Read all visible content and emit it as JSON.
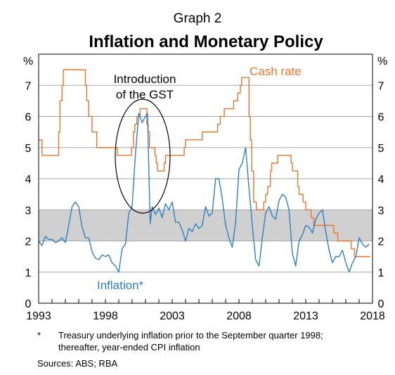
{
  "chart_data": {
    "type": "line",
    "graph_label": "Graph 2",
    "title": "Inflation and Monetary Policy",
    "y_unit_left": "%",
    "y_unit_right": "%",
    "ylim": [
      0,
      8
    ],
    "y_ticks": [
      0,
      1,
      2,
      3,
      4,
      5,
      6,
      7
    ],
    "xlim": [
      1993,
      2018
    ],
    "x_ticks": [
      1993,
      1998,
      2003,
      2008,
      2013,
      2018
    ],
    "target_band": [
      2,
      3
    ],
    "colors": {
      "cash_rate": "#e8762c",
      "inflation": "#2f7fc1",
      "band": "#d0d0d0",
      "grid": "#a6a6a6",
      "annotation": "#000000"
    },
    "annotations": {
      "gst_line1": "Introduction",
      "gst_line2": "of the GST"
    },
    "footnotes": {
      "star": "*",
      "note_line1": "Treasury underlying inflation prior to the September quarter 1998;",
      "note_line2": "thereafter, year-ended CPI inflation",
      "sources": "Sources:   ABS; RBA"
    },
    "series": [
      {
        "name": "Cash rate",
        "step": true,
        "points": [
          [
            1993.0,
            5.25
          ],
          [
            1993.25,
            4.75
          ],
          [
            1994.5,
            5.5
          ],
          [
            1994.6,
            6.5
          ],
          [
            1994.75,
            7.0
          ],
          [
            1994.85,
            7.5
          ],
          [
            1996.5,
            7.0
          ],
          [
            1996.6,
            6.5
          ],
          [
            1996.75,
            6.0
          ],
          [
            1997.0,
            5.5
          ],
          [
            1997.35,
            5.0
          ],
          [
            1998.9,
            4.75
          ],
          [
            1999.95,
            5.0
          ],
          [
            2000.1,
            5.5
          ],
          [
            2000.2,
            5.75
          ],
          [
            2000.35,
            6.0
          ],
          [
            2000.6,
            6.25
          ],
          [
            2001.1,
            5.75
          ],
          [
            2001.2,
            5.5
          ],
          [
            2001.3,
            5.0
          ],
          [
            2001.7,
            4.75
          ],
          [
            2001.8,
            4.5
          ],
          [
            2001.9,
            4.25
          ],
          [
            2002.4,
            4.5
          ],
          [
            2002.5,
            4.75
          ],
          [
            2003.9,
            5.0
          ],
          [
            2004.0,
            5.25
          ],
          [
            2005.25,
            5.5
          ],
          [
            2006.4,
            5.75
          ],
          [
            2006.6,
            6.0
          ],
          [
            2006.9,
            6.25
          ],
          [
            2007.6,
            6.5
          ],
          [
            2007.9,
            6.75
          ],
          [
            2008.1,
            7.0
          ],
          [
            2008.2,
            7.25
          ],
          [
            2008.75,
            6.0
          ],
          [
            2008.85,
            5.25
          ],
          [
            2008.95,
            4.25
          ],
          [
            2009.1,
            3.25
          ],
          [
            2009.3,
            3.0
          ],
          [
            2009.85,
            3.25
          ],
          [
            2010.0,
            3.5
          ],
          [
            2010.15,
            3.75
          ],
          [
            2010.35,
            4.25
          ],
          [
            2010.45,
            4.5
          ],
          [
            2010.9,
            4.75
          ],
          [
            2011.9,
            4.5
          ],
          [
            2012.0,
            4.25
          ],
          [
            2012.4,
            3.75
          ],
          [
            2012.5,
            3.5
          ],
          [
            2012.8,
            3.25
          ],
          [
            2013.0,
            3.0
          ],
          [
            2013.4,
            2.75
          ],
          [
            2013.6,
            2.5
          ],
          [
            2015.1,
            2.25
          ],
          [
            2015.4,
            2.0
          ],
          [
            2016.4,
            1.75
          ],
          [
            2016.65,
            1.5
          ],
          [
            2017.8,
            1.5
          ]
        ]
      },
      {
        "name": "Inflation*",
        "step": false,
        "points": [
          [
            1993.0,
            2.0
          ],
          [
            1993.25,
            1.85
          ],
          [
            1993.5,
            2.15
          ],
          [
            1993.75,
            2.05
          ],
          [
            1994.0,
            2.05
          ],
          [
            1994.25,
            1.95
          ],
          [
            1994.5,
            2.0
          ],
          [
            1994.75,
            2.1
          ],
          [
            1995.0,
            1.95
          ],
          [
            1995.25,
            2.5
          ],
          [
            1995.5,
            3.1
          ],
          [
            1995.75,
            3.25
          ],
          [
            1996.0,
            3.1
          ],
          [
            1996.25,
            2.45
          ],
          [
            1996.5,
            2.1
          ],
          [
            1996.75,
            2.1
          ],
          [
            1997.0,
            1.65
          ],
          [
            1997.25,
            1.45
          ],
          [
            1997.5,
            1.4
          ],
          [
            1997.75,
            1.55
          ],
          [
            1998.0,
            1.5
          ],
          [
            1998.25,
            1.55
          ],
          [
            1998.5,
            1.3
          ],
          [
            1998.75,
            1.2
          ],
          [
            1999.0,
            1.0
          ],
          [
            1999.25,
            1.75
          ],
          [
            1999.5,
            1.9
          ],
          [
            1999.75,
            2.9
          ],
          [
            2000.0,
            3.1
          ],
          [
            2000.25,
            4.8
          ],
          [
            2000.5,
            6.1
          ],
          [
            2000.75,
            5.8
          ],
          [
            2001.0,
            6.0
          ],
          [
            2001.15,
            6.1
          ],
          [
            2001.35,
            2.55
          ],
          [
            2001.5,
            3.1
          ],
          [
            2001.75,
            2.85
          ],
          [
            2002.0,
            3.05
          ],
          [
            2002.25,
            2.75
          ],
          [
            2002.5,
            3.2
          ],
          [
            2002.75,
            3.0
          ],
          [
            2003.0,
            3.25
          ],
          [
            2003.25,
            2.6
          ],
          [
            2003.5,
            2.6
          ],
          [
            2003.75,
            2.35
          ],
          [
            2004.0,
            2.0
          ],
          [
            2004.25,
            2.4
          ],
          [
            2004.5,
            2.3
          ],
          [
            2004.75,
            2.55
          ],
          [
            2005.0,
            2.4
          ],
          [
            2005.25,
            2.5
          ],
          [
            2005.5,
            3.1
          ],
          [
            2005.75,
            2.8
          ],
          [
            2006.0,
            2.9
          ],
          [
            2006.25,
            4.0
          ],
          [
            2006.5,
            4.0
          ],
          [
            2006.75,
            3.35
          ],
          [
            2007.0,
            2.5
          ],
          [
            2007.25,
            2.1
          ],
          [
            2007.5,
            1.8
          ],
          [
            2007.75,
            2.6
          ],
          [
            2008.0,
            4.3
          ],
          [
            2008.25,
            4.5
          ],
          [
            2008.5,
            5.0
          ],
          [
            2008.75,
            3.7
          ],
          [
            2009.0,
            2.5
          ],
          [
            2009.25,
            1.4
          ],
          [
            2009.5,
            1.2
          ],
          [
            2009.75,
            2.1
          ],
          [
            2010.0,
            2.9
          ],
          [
            2010.25,
            3.1
          ],
          [
            2010.5,
            2.8
          ],
          [
            2010.75,
            2.7
          ],
          [
            2011.0,
            3.3
          ],
          [
            2011.25,
            3.5
          ],
          [
            2011.5,
            3.4
          ],
          [
            2011.75,
            3.0
          ],
          [
            2012.0,
            1.6
          ],
          [
            2012.25,
            1.2
          ],
          [
            2012.5,
            2.0
          ],
          [
            2012.75,
            2.2
          ],
          [
            2013.0,
            2.5
          ],
          [
            2013.25,
            2.45
          ],
          [
            2013.5,
            2.25
          ],
          [
            2013.75,
            2.7
          ],
          [
            2014.0,
            2.9
          ],
          [
            2014.25,
            3.0
          ],
          [
            2014.5,
            2.3
          ],
          [
            2014.75,
            1.7
          ],
          [
            2015.0,
            1.3
          ],
          [
            2015.25,
            1.5
          ],
          [
            2015.5,
            1.5
          ],
          [
            2015.75,
            1.7
          ],
          [
            2016.0,
            1.3
          ],
          [
            2016.25,
            1.0
          ],
          [
            2016.5,
            1.3
          ],
          [
            2016.75,
            1.5
          ],
          [
            2017.0,
            2.1
          ],
          [
            2017.25,
            1.9
          ],
          [
            2017.5,
            1.8
          ],
          [
            2017.75,
            1.9
          ]
        ]
      }
    ],
    "series_labels": {
      "cash_rate": "Cash rate",
      "inflation": "Inflation*"
    }
  }
}
